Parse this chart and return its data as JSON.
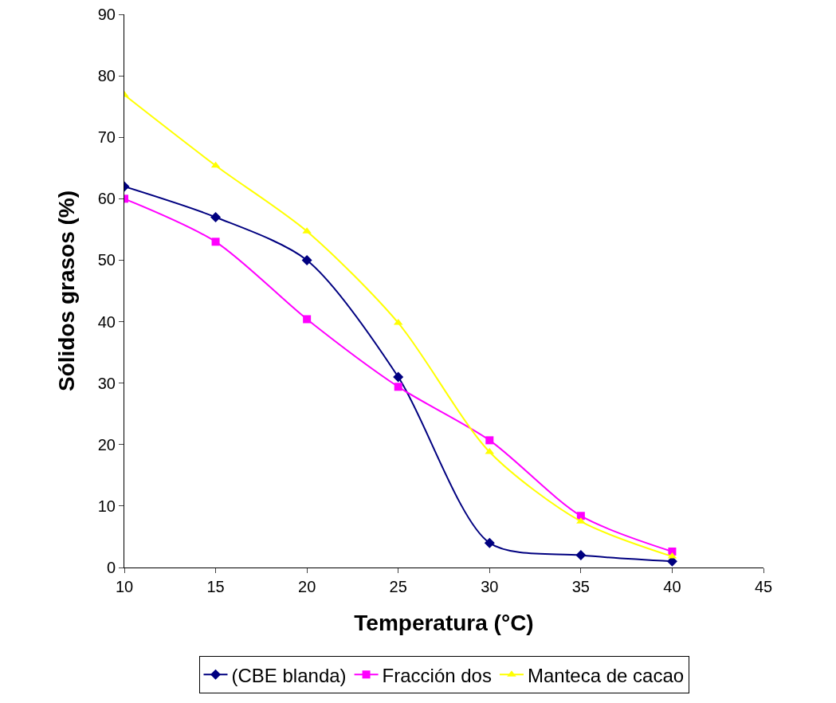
{
  "chart_data": {
    "type": "line",
    "xlabel": "Temperatura (°C)",
    "ylabel": "Sólidos grasos (%)",
    "x": [
      10,
      15,
      20,
      25,
      30,
      35,
      40
    ],
    "xlim": [
      10,
      45
    ],
    "xticks": [
      10,
      15,
      20,
      25,
      30,
      35,
      40,
      45
    ],
    "ylim": [
      0,
      90
    ],
    "yticks": [
      0,
      10,
      20,
      30,
      40,
      50,
      60,
      70,
      80,
      90
    ],
    "grid": false,
    "legend": "bottom",
    "series": [
      {
        "name": "(CBE blanda)",
        "color": "#000080",
        "marker": "diamond",
        "values": [
          62,
          57,
          50,
          31,
          4,
          2,
          1
        ]
      },
      {
        "name": "Fracción dos",
        "color": "#ff00ff",
        "marker": "square",
        "values": [
          60,
          53,
          40.4,
          29.4,
          20.7,
          8.4,
          2.6
        ]
      },
      {
        "name": "Manteca de cacao",
        "color": "#ffff00",
        "marker": "triangle",
        "values": [
          76.9,
          65.4,
          54.7,
          39.8,
          18.8,
          7.5,
          1.8
        ]
      }
    ]
  }
}
